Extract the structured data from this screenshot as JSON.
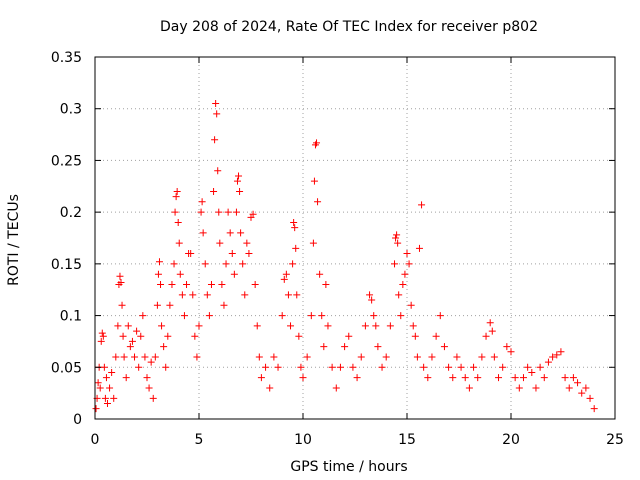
{
  "chart_data": {
    "type": "scatter",
    "title": "Day 208 of 2024, Rate Of TEC Index for receiver p802",
    "xlabel": "GPS time / hours",
    "ylabel": "ROTI / TECUs",
    "xlim": [
      0,
      25
    ],
    "ylim": [
      0,
      0.35
    ],
    "x_ticks": [
      0,
      5,
      10,
      15,
      20,
      25
    ],
    "x_tick_labels": [
      "0",
      "5",
      "10",
      "15",
      "20",
      "25"
    ],
    "y_ticks": [
      0,
      0.05,
      0.1,
      0.15,
      0.2,
      0.25,
      0.3,
      0.35
    ],
    "y_tick_labels": [
      "0",
      "0.05",
      "0.1",
      "0.15",
      "0.2",
      "0.25",
      "0.3",
      "0.35"
    ],
    "grid": true,
    "marker": "+",
    "series": [
      {
        "color": "#ff0000",
        "points": [
          [
            0.05,
            0.01
          ],
          [
            0.1,
            0.02
          ],
          [
            0.15,
            0.035
          ],
          [
            0.2,
            0.05
          ],
          [
            0.25,
            0.03
          ],
          [
            0.3,
            0.075
          ],
          [
            0.35,
            0.083
          ],
          [
            0.4,
            0.08
          ],
          [
            0.45,
            0.05
          ],
          [
            0.5,
            0.02
          ],
          [
            0.55,
            0.04
          ],
          [
            0.6,
            0.015
          ],
          [
            0.7,
            0.03
          ],
          [
            0.8,
            0.045
          ],
          [
            0.9,
            0.02
          ],
          [
            1.0,
            0.06
          ],
          [
            1.1,
            0.09
          ],
          [
            1.15,
            0.13
          ],
          [
            1.2,
            0.138
          ],
          [
            1.25,
            0.132
          ],
          [
            1.3,
            0.11
          ],
          [
            1.35,
            0.08
          ],
          [
            1.4,
            0.06
          ],
          [
            1.5,
            0.04
          ],
          [
            1.6,
            0.09
          ],
          [
            1.7,
            0.07
          ],
          [
            1.8,
            0.075
          ],
          [
            1.9,
            0.06
          ],
          [
            2.0,
            0.085
          ],
          [
            2.1,
            0.05
          ],
          [
            2.2,
            0.08
          ],
          [
            2.3,
            0.1
          ],
          [
            2.4,
            0.06
          ],
          [
            2.5,
            0.04
          ],
          [
            2.6,
            0.03
          ],
          [
            2.7,
            0.055
          ],
          [
            2.8,
            0.02
          ],
          [
            2.9,
            0.06
          ],
          [
            3.0,
            0.11
          ],
          [
            3.05,
            0.14
          ],
          [
            3.1,
            0.152
          ],
          [
            3.15,
            0.13
          ],
          [
            3.2,
            0.09
          ],
          [
            3.3,
            0.07
          ],
          [
            3.4,
            0.05
          ],
          [
            3.5,
            0.08
          ],
          [
            3.6,
            0.11
          ],
          [
            3.7,
            0.13
          ],
          [
            3.8,
            0.15
          ],
          [
            3.85,
            0.2
          ],
          [
            3.9,
            0.215
          ],
          [
            3.95,
            0.22
          ],
          [
            4.0,
            0.19
          ],
          [
            4.05,
            0.17
          ],
          [
            4.1,
            0.14
          ],
          [
            4.2,
            0.12
          ],
          [
            4.3,
            0.1
          ],
          [
            4.4,
            0.13
          ],
          [
            4.5,
            0.16
          ],
          [
            4.6,
            0.16
          ],
          [
            4.7,
            0.12
          ],
          [
            4.8,
            0.08
          ],
          [
            4.9,
            0.06
          ],
          [
            5.0,
            0.09
          ],
          [
            5.1,
            0.2
          ],
          [
            5.15,
            0.21
          ],
          [
            5.2,
            0.18
          ],
          [
            5.3,
            0.15
          ],
          [
            5.4,
            0.12
          ],
          [
            5.5,
            0.1
          ],
          [
            5.6,
            0.13
          ],
          [
            5.7,
            0.22
          ],
          [
            5.75,
            0.27
          ],
          [
            5.8,
            0.305
          ],
          [
            5.85,
            0.295
          ],
          [
            5.9,
            0.24
          ],
          [
            5.95,
            0.2
          ],
          [
            6.0,
            0.17
          ],
          [
            6.1,
            0.13
          ],
          [
            6.2,
            0.11
          ],
          [
            6.3,
            0.15
          ],
          [
            6.4,
            0.2
          ],
          [
            6.5,
            0.18
          ],
          [
            6.6,
            0.16
          ],
          [
            6.7,
            0.14
          ],
          [
            6.8,
            0.2
          ],
          [
            6.85,
            0.23
          ],
          [
            6.9,
            0.235
          ],
          [
            6.95,
            0.22
          ],
          [
            7.0,
            0.18
          ],
          [
            7.1,
            0.15
          ],
          [
            7.2,
            0.12
          ],
          [
            7.3,
            0.17
          ],
          [
            7.4,
            0.16
          ],
          [
            7.5,
            0.195
          ],
          [
            7.6,
            0.198
          ],
          [
            7.7,
            0.13
          ],
          [
            7.8,
            0.09
          ],
          [
            7.9,
            0.06
          ],
          [
            8.0,
            0.04
          ],
          [
            8.2,
            0.05
          ],
          [
            8.4,
            0.03
          ],
          [
            8.6,
            0.06
          ],
          [
            8.8,
            0.05
          ],
          [
            9.0,
            0.1
          ],
          [
            9.1,
            0.135
          ],
          [
            9.2,
            0.14
          ],
          [
            9.3,
            0.12
          ],
          [
            9.4,
            0.09
          ],
          [
            9.5,
            0.15
          ],
          [
            9.55,
            0.19
          ],
          [
            9.6,
            0.185
          ],
          [
            9.65,
            0.165
          ],
          [
            9.7,
            0.12
          ],
          [
            9.8,
            0.08
          ],
          [
            9.9,
            0.05
          ],
          [
            10.0,
            0.04
          ],
          [
            10.2,
            0.06
          ],
          [
            10.4,
            0.1
          ],
          [
            10.5,
            0.17
          ],
          [
            10.55,
            0.23
          ],
          [
            10.6,
            0.265
          ],
          [
            10.65,
            0.267
          ],
          [
            10.7,
            0.21
          ],
          [
            10.8,
            0.14
          ],
          [
            10.9,
            0.1
          ],
          [
            11.0,
            0.07
          ],
          [
            11.1,
            0.13
          ],
          [
            11.2,
            0.09
          ],
          [
            11.4,
            0.05
          ],
          [
            11.6,
            0.03
          ],
          [
            11.8,
            0.05
          ],
          [
            12.0,
            0.07
          ],
          [
            12.2,
            0.08
          ],
          [
            12.4,
            0.05
          ],
          [
            12.6,
            0.04
          ],
          [
            12.8,
            0.06
          ],
          [
            13.0,
            0.09
          ],
          [
            13.2,
            0.12
          ],
          [
            13.3,
            0.115
          ],
          [
            13.4,
            0.1
          ],
          [
            13.5,
            0.09
          ],
          [
            13.6,
            0.07
          ],
          [
            13.8,
            0.05
          ],
          [
            14.0,
            0.06
          ],
          [
            14.2,
            0.09
          ],
          [
            14.4,
            0.15
          ],
          [
            14.45,
            0.175
          ],
          [
            14.5,
            0.178
          ],
          [
            14.55,
            0.17
          ],
          [
            14.6,
            0.12
          ],
          [
            14.7,
            0.1
          ],
          [
            14.8,
            0.13
          ],
          [
            14.9,
            0.14
          ],
          [
            15.0,
            0.16
          ],
          [
            15.1,
            0.15
          ],
          [
            15.2,
            0.11
          ],
          [
            15.3,
            0.09
          ],
          [
            15.4,
            0.08
          ],
          [
            15.5,
            0.06
          ],
          [
            15.6,
            0.165
          ],
          [
            15.7,
            0.207
          ],
          [
            15.8,
            0.05
          ],
          [
            16.0,
            0.04
          ],
          [
            16.2,
            0.06
          ],
          [
            16.4,
            0.08
          ],
          [
            16.6,
            0.1
          ],
          [
            16.8,
            0.07
          ],
          [
            17.0,
            0.05
          ],
          [
            17.2,
            0.04
          ],
          [
            17.4,
            0.06
          ],
          [
            17.6,
            0.05
          ],
          [
            17.8,
            0.04
          ],
          [
            18.0,
            0.03
          ],
          [
            18.2,
            0.05
          ],
          [
            18.4,
            0.04
          ],
          [
            18.6,
            0.06
          ],
          [
            18.8,
            0.08
          ],
          [
            19.0,
            0.093
          ],
          [
            19.1,
            0.085
          ],
          [
            19.2,
            0.06
          ],
          [
            19.4,
            0.04
          ],
          [
            19.6,
            0.05
          ],
          [
            19.8,
            0.07
          ],
          [
            20.0,
            0.065
          ],
          [
            20.2,
            0.04
          ],
          [
            20.4,
            0.03
          ],
          [
            20.6,
            0.04
          ],
          [
            20.8,
            0.05
          ],
          [
            21.0,
            0.045
          ],
          [
            21.2,
            0.03
          ],
          [
            21.4,
            0.05
          ],
          [
            21.6,
            0.04
          ],
          [
            21.8,
            0.055
          ],
          [
            22.0,
            0.06
          ],
          [
            22.2,
            0.062
          ],
          [
            22.4,
            0.065
          ],
          [
            22.6,
            0.04
          ],
          [
            22.8,
            0.03
          ],
          [
            23.0,
            0.04
          ],
          [
            23.2,
            0.035
          ],
          [
            23.4,
            0.025
          ],
          [
            23.6,
            0.03
          ],
          [
            23.8,
            0.02
          ],
          [
            24.0,
            0.01
          ]
        ]
      }
    ]
  }
}
